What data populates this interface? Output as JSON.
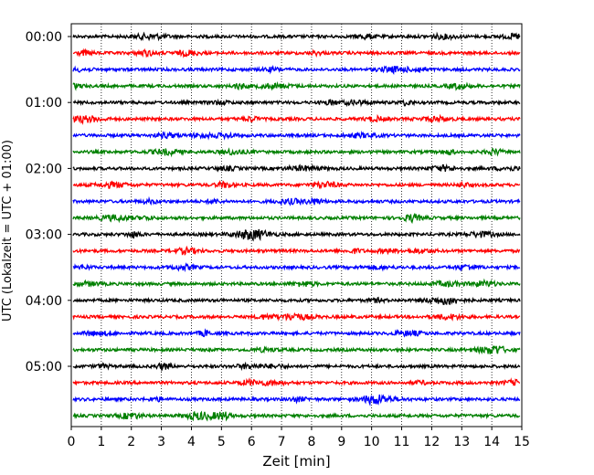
{
  "chart_data": {
    "type": "line",
    "xlabel": "Zeit  [min]",
    "ylabel": "UTC (Lokalzeit = UTC + 01:00)",
    "xlim": [
      0,
      15
    ],
    "x_ticks": [
      0,
      1,
      2,
      3,
      4,
      5,
      6,
      7,
      8,
      9,
      10,
      11,
      12,
      13,
      14,
      15
    ],
    "y_ticks": [
      {
        "label": "00:00",
        "row": 0
      },
      {
        "label": "01:00",
        "row": 4
      },
      {
        "label": "02:00",
        "row": 8
      },
      {
        "label": "03:00",
        "row": 12
      },
      {
        "label": "04:00",
        "row": 16
      },
      {
        "label": "05:00",
        "row": 20
      }
    ],
    "row_interval_minutes": 15,
    "row_count": 24,
    "trace_colors": [
      "#000000",
      "#ff0000",
      "#0000ff",
      "#008000"
    ],
    "vertical_grid": "dotted",
    "series": []
  }
}
